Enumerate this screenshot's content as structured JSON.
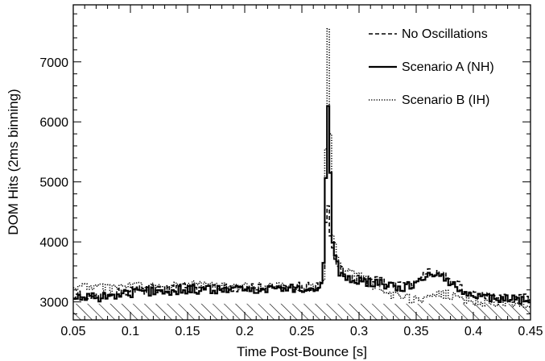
{
  "chart_data": {
    "type": "line",
    "xlabel": "Time Post-Bounce [s]",
    "ylabel": "DOM Hits (2ms binning)",
    "xlim": [
      0.05,
      0.45
    ],
    "ylim": [
      2700,
      7950
    ],
    "x_ticks": [
      0.05,
      0.1,
      0.15,
      0.2,
      0.25,
      0.3,
      0.35,
      0.4,
      0.45
    ],
    "x_tick_labels": [
      "0.05",
      "0.1",
      "0.15",
      "0.2",
      "0.25",
      "0.3",
      "0.35",
      "0.4",
      "0.45"
    ],
    "y_ticks": [
      3000,
      4000,
      5000,
      6000,
      7000
    ],
    "y_tick_labels": [
      "3000",
      "4000",
      "5000",
      "6000",
      "7000"
    ],
    "grid": false,
    "legend_position": "top-right",
    "step_histogram": true,
    "bin_width": 0.002,
    "background_band": {
      "from": 2700,
      "to": 2970,
      "style": "hatched"
    },
    "series": [
      {
        "name": "No Oscillations",
        "line_style": "dashed",
        "anchors": [
          [
            0.05,
            3120
          ],
          [
            0.08,
            3130
          ],
          [
            0.11,
            3200
          ],
          [
            0.15,
            3240
          ],
          [
            0.19,
            3230
          ],
          [
            0.22,
            3250
          ],
          [
            0.25,
            3260
          ],
          [
            0.266,
            3240
          ],
          [
            0.27,
            3650
          ],
          [
            0.272,
            5000
          ],
          [
            0.274,
            4200
          ],
          [
            0.278,
            3800
          ],
          [
            0.282,
            3600
          ],
          [
            0.29,
            3420
          ],
          [
            0.3,
            3380
          ],
          [
            0.31,
            3360
          ],
          [
            0.32,
            3340
          ],
          [
            0.33,
            3260
          ],
          [
            0.34,
            3260
          ],
          [
            0.35,
            3340
          ],
          [
            0.36,
            3500
          ],
          [
            0.37,
            3480
          ],
          [
            0.38,
            3380
          ],
          [
            0.39,
            3220
          ],
          [
            0.4,
            3130
          ],
          [
            0.42,
            3080
          ],
          [
            0.44,
            3060
          ],
          [
            0.45,
            3050
          ]
        ]
      },
      {
        "name": "Scenario A (NH)",
        "line_style": "solid",
        "anchors": [
          [
            0.05,
            3050
          ],
          [
            0.08,
            3090
          ],
          [
            0.11,
            3170
          ],
          [
            0.15,
            3200
          ],
          [
            0.19,
            3200
          ],
          [
            0.22,
            3220
          ],
          [
            0.25,
            3230
          ],
          [
            0.266,
            3200
          ],
          [
            0.27,
            3800
          ],
          [
            0.272,
            6330
          ],
          [
            0.274,
            6200
          ],
          [
            0.276,
            4100
          ],
          [
            0.28,
            3650
          ],
          [
            0.284,
            3450
          ],
          [
            0.29,
            3380
          ],
          [
            0.3,
            3340
          ],
          [
            0.31,
            3320
          ],
          [
            0.32,
            3300
          ],
          [
            0.33,
            3240
          ],
          [
            0.34,
            3240
          ],
          [
            0.35,
            3300
          ],
          [
            0.36,
            3460
          ],
          [
            0.37,
            3420
          ],
          [
            0.38,
            3330
          ],
          [
            0.39,
            3190
          ],
          [
            0.4,
            3100
          ],
          [
            0.42,
            3050
          ],
          [
            0.44,
            3030
          ],
          [
            0.45,
            3010
          ]
        ]
      },
      {
        "name": "Scenario B (IH)",
        "line_style": "dotted",
        "anchors": [
          [
            0.05,
            3250
          ],
          [
            0.08,
            3230
          ],
          [
            0.11,
            3260
          ],
          [
            0.15,
            3290
          ],
          [
            0.19,
            3240
          ],
          [
            0.22,
            3250
          ],
          [
            0.25,
            3240
          ],
          [
            0.266,
            3230
          ],
          [
            0.27,
            3400
          ],
          [
            0.272,
            7700
          ],
          [
            0.274,
            7400
          ],
          [
            0.276,
            4200
          ],
          [
            0.28,
            3850
          ],
          [
            0.284,
            3600
          ],
          [
            0.29,
            3500
          ],
          [
            0.3,
            3420
          ],
          [
            0.31,
            3300
          ],
          [
            0.32,
            3200
          ],
          [
            0.33,
            3120
          ],
          [
            0.34,
            3060
          ],
          [
            0.35,
            3040
          ],
          [
            0.36,
            3080
          ],
          [
            0.37,
            3120
          ],
          [
            0.38,
            3120
          ],
          [
            0.39,
            3060
          ],
          [
            0.4,
            3010
          ],
          [
            0.42,
            2990
          ],
          [
            0.44,
            2980
          ],
          [
            0.45,
            2970
          ]
        ]
      }
    ]
  }
}
